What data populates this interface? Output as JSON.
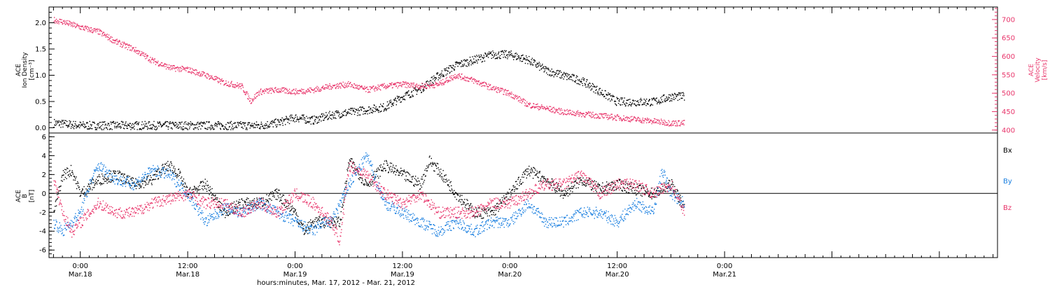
{
  "x_axis": {
    "title": "hours:minutes, Mar. 17, 2012 - Mar. 21, 2012",
    "range_hours": [
      20.5,
      126.5
    ],
    "ticks": [
      {
        "hour": 24,
        "time": "0:00",
        "date": "Mar.18"
      },
      {
        "hour": 36,
        "time": "12:00",
        "date": "Mar.18"
      },
      {
        "hour": 48,
        "time": "0:00",
        "date": "Mar.19"
      },
      {
        "hour": 60,
        "time": "12:00",
        "date": "Mar.19"
      },
      {
        "hour": 72,
        "time": "0:00",
        "date": "Mar.20"
      },
      {
        "hour": 84,
        "time": "12:00",
        "date": "Mar.20"
      },
      {
        "hour": 96,
        "time": "0:00",
        "date": "Mar.21"
      }
    ]
  },
  "colors": {
    "black": "#000000",
    "red": "#e8346a",
    "blue": "#1a7fe0",
    "axis": "#000000"
  },
  "chart_data": [
    {
      "type": "scatter",
      "panel": "top",
      "left_axis": {
        "label_lines": [
          "ACE",
          "Ion Density",
          "[cm⁻³]"
        ],
        "ylim": [
          -0.1,
          2.3
        ],
        "ticks": [
          "0.0",
          "0.5",
          "1.0",
          "1.5",
          "2.0"
        ],
        "tick_values": [
          0,
          0.5,
          1.0,
          1.5,
          2.0
        ]
      },
      "right_axis": {
        "label_lines": [
          "ACE",
          "Velocity",
          "[km/s]"
        ],
        "ylim": [
          392,
          734
        ],
        "ticks": [
          "400",
          "450",
          "500",
          "550",
          "600",
          "650",
          "700"
        ],
        "tick_values": [
          400,
          450,
          500,
          550,
          600,
          650,
          700
        ]
      },
      "series": [
        {
          "color": "black",
          "axis": "left",
          "x_hours": [
            21,
            24,
            28,
            32,
            36,
            40,
            42,
            44,
            46,
            48,
            50,
            52,
            54,
            56,
            58,
            60,
            62,
            64,
            66,
            68,
            70,
            72,
            74,
            76,
            78,
            80,
            82,
            84,
            86,
            88,
            90,
            91.5
          ],
          "values": [
            0.1,
            0.05,
            0.05,
            0.05,
            0.05,
            0.05,
            0.05,
            0.05,
            0.1,
            0.2,
            0.15,
            0.25,
            0.3,
            0.35,
            0.4,
            0.6,
            0.75,
            1.0,
            1.2,
            1.3,
            1.4,
            1.4,
            1.3,
            1.1,
            1.0,
            0.9,
            0.7,
            0.5,
            0.5,
            0.5,
            0.6,
            0.6
          ]
        },
        {
          "color": "red",
          "axis": "right",
          "x_hours": [
            21,
            22,
            24,
            26,
            28,
            30,
            32,
            34,
            36,
            38,
            40,
            42,
            43,
            44,
            46,
            48,
            50,
            52,
            54,
            56,
            58,
            60,
            62,
            64,
            66,
            68,
            70,
            72,
            74,
            76,
            78,
            80,
            82,
            84,
            86,
            88,
            90,
            91.5
          ],
          "values": [
            700,
            695,
            680,
            668,
            640,
            620,
            590,
            570,
            565,
            550,
            530,
            520,
            480,
            505,
            510,
            505,
            510,
            520,
            525,
            510,
            520,
            525,
            520,
            525,
            550,
            535,
            515,
            500,
            470,
            460,
            450,
            445,
            440,
            435,
            430,
            425,
            420,
            420
          ]
        }
      ]
    },
    {
      "type": "scatter",
      "panel": "bottom",
      "left_axis": {
        "label_lines": [
          "ACE",
          "B",
          "[nT]"
        ],
        "ylim": [
          -6.8,
          6.4
        ],
        "ticks": [
          "-6",
          "-4",
          "-2",
          "0",
          "2",
          "4",
          "6"
        ],
        "tick_values": [
          -6,
          -4,
          -2,
          0,
          2,
          4,
          6
        ]
      },
      "legend": {
        "placement": "right",
        "entries": [
          "Bx",
          "By",
          "Bz"
        ]
      },
      "zero_line": true,
      "series": [
        {
          "name": "Bx",
          "color": "black",
          "x_hours": [
            21,
            22,
            23,
            24,
            26,
            28,
            30,
            32,
            33,
            34,
            35,
            36,
            38,
            40,
            42,
            44,
            46,
            48,
            49,
            50,
            52,
            53,
            54,
            56,
            58,
            60,
            62,
            63,
            64,
            66,
            68,
            70,
            72,
            74,
            76,
            78,
            80,
            82,
            84,
            86,
            88,
            90,
            91.5
          ],
          "values": [
            -2,
            2,
            2.5,
            0,
            1.5,
            2,
            1,
            1.5,
            2.5,
            3,
            2,
            0,
            1,
            -2,
            -1,
            -1,
            0,
            -2,
            -4,
            -3,
            -3,
            -3,
            3.5,
            1,
            3,
            2,
            1,
            3.5,
            2.5,
            0,
            -2,
            -2,
            0,
            2.5,
            1.5,
            0,
            1.5,
            0.5,
            1,
            0.5,
            0,
            1,
            -1.5
          ]
        },
        {
          "name": "By",
          "color": "blue",
          "x_hours": [
            21,
            22,
            24,
            25,
            26,
            28,
            30,
            32,
            34,
            35,
            36,
            38,
            40,
            42,
            44,
            46,
            48,
            50,
            51,
            52,
            54,
            56,
            58,
            60,
            62,
            64,
            66,
            68,
            70,
            72,
            74,
            76,
            78,
            80,
            82,
            84,
            86,
            88,
            89,
            90,
            91.5
          ],
          "values": [
            -3,
            -4,
            -2,
            1,
            3,
            1.5,
            1,
            2.5,
            2,
            1,
            0,
            -3,
            -1.5,
            -2,
            -1,
            -2,
            -3,
            -4,
            -3,
            -3,
            1,
            4,
            -1,
            -2,
            -3,
            -4,
            -3,
            -4,
            -3,
            -3,
            -1,
            -3,
            -3,
            -2,
            -2,
            -3,
            -1,
            -2,
            2.5,
            0,
            -1
          ]
        },
        {
          "name": "Bz",
          "color": "red",
          "x_hours": [
            21,
            22,
            23,
            24,
            26,
            28,
            30,
            32,
            34,
            36,
            38,
            40,
            42,
            44,
            46,
            48,
            50,
            52,
            53,
            54,
            56,
            58,
            60,
            62,
            64,
            66,
            68,
            70,
            72,
            74,
            76,
            78,
            80,
            82,
            84,
            86,
            88,
            90,
            91.5
          ],
          "values": [
            1.5,
            -2,
            -4,
            -3,
            -1,
            -2,
            -2,
            -1,
            -0.5,
            0,
            -1,
            -1,
            -2,
            -1,
            -2,
            0,
            -1,
            -3,
            -5,
            3,
            2,
            0,
            -1,
            0,
            -2,
            -2,
            -2,
            -1,
            -1,
            0,
            1,
            1,
            2,
            0,
            1,
            1,
            0,
            1,
            -2
          ]
        }
      ]
    }
  ]
}
